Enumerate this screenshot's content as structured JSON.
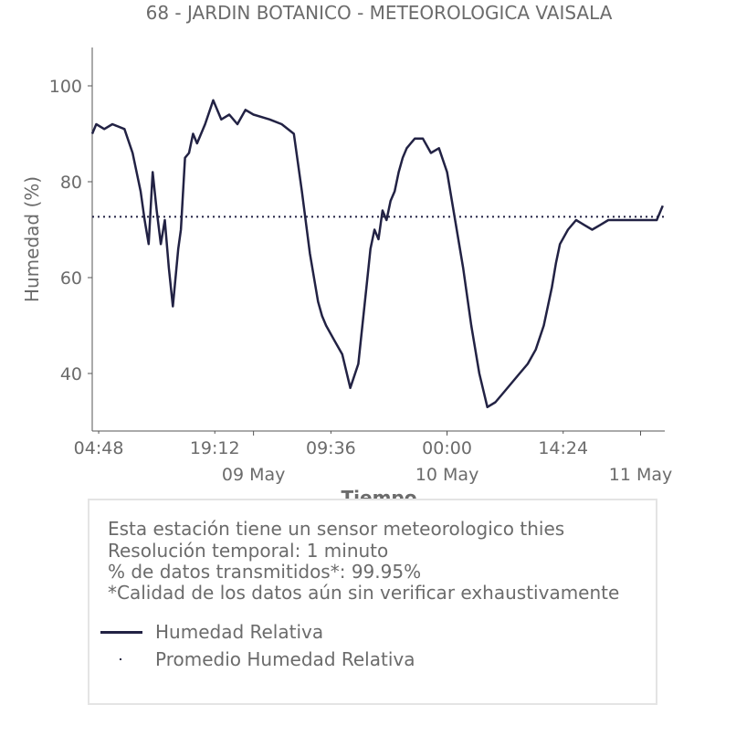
{
  "chart_data": {
    "type": "line",
    "title": "68 - JARDIN BOTANICO - METEOROLOGICA VAISALA",
    "xlabel": "Tiempo",
    "ylabel": "Humedad (%)",
    "ylim": [
      28,
      108
    ],
    "yticks": [
      40,
      60,
      80,
      100
    ],
    "xlim": [
      "2025-05-08 04:00",
      "2025-05-11 03:00"
    ],
    "xticks_minor": [
      {
        "x": "2025-05-08 04:48",
        "label": "04:48"
      },
      {
        "x": "2025-05-08 19:12",
        "label": "19:12"
      },
      {
        "x": "2025-05-09 09:36",
        "label": "09:36"
      },
      {
        "x": "2025-05-10 00:00",
        "label": "00:00"
      },
      {
        "x": "2025-05-10 14:24",
        "label": "14:24"
      }
    ],
    "xticks_major": [
      {
        "x": "2025-05-09 00:00",
        "label": "09 May"
      },
      {
        "x": "2025-05-10 00:00",
        "label": "10 May"
      },
      {
        "x": "2025-05-11 00:00",
        "label": "11 May"
      }
    ],
    "grid": false,
    "series": [
      {
        "name": "Humedad Relativa",
        "color": "#222244",
        "style": "solid",
        "x": [
          "2025-05-08 04:00",
          "2025-05-08 04:30",
          "2025-05-08 05:30",
          "2025-05-08 06:30",
          "2025-05-08 08:00",
          "2025-05-08 09:00",
          "2025-05-08 10:00",
          "2025-05-08 10:30",
          "2025-05-08 11:00",
          "2025-05-08 11:30",
          "2025-05-08 12:00",
          "2025-05-08 12:30",
          "2025-05-08 13:00",
          "2025-05-08 13:30",
          "2025-05-08 14:00",
          "2025-05-08 14:40",
          "2025-05-08 15:00",
          "2025-05-08 15:30",
          "2025-05-08 16:00",
          "2025-05-08 16:30",
          "2025-05-08 17:00",
          "2025-05-08 18:00",
          "2025-05-08 19:00",
          "2025-05-08 20:00",
          "2025-05-08 21:00",
          "2025-05-08 22:00",
          "2025-05-08 23:00",
          "2025-05-09 00:00",
          "2025-05-09 02:00",
          "2025-05-09 03:30",
          "2025-05-09 05:00",
          "2025-05-09 06:00",
          "2025-05-09 07:00",
          "2025-05-09 08:00",
          "2025-05-09 08:30",
          "2025-05-09 09:00",
          "2025-05-09 10:00",
          "2025-05-09 11:00",
          "2025-05-09 12:00",
          "2025-05-09 13:00",
          "2025-05-09 14:00",
          "2025-05-09 14:30",
          "2025-05-09 15:00",
          "2025-05-09 15:30",
          "2025-05-09 16:00",
          "2025-05-09 16:30",
          "2025-05-09 17:00",
          "2025-05-09 17:30",
          "2025-05-09 18:00",
          "2025-05-09 18:30",
          "2025-05-09 19:00",
          "2025-05-09 19:30",
          "2025-05-09 20:00",
          "2025-05-09 21:00",
          "2025-05-09 22:00",
          "2025-05-09 23:00",
          "2025-05-10 00:00",
          "2025-05-10 01:00",
          "2025-05-10 02:00",
          "2025-05-10 03:00",
          "2025-05-10 04:00",
          "2025-05-10 05:00",
          "2025-05-10 06:00",
          "2025-05-10 07:00",
          "2025-05-10 08:00",
          "2025-05-10 09:00",
          "2025-05-10 10:00",
          "2025-05-10 11:00",
          "2025-05-10 12:00",
          "2025-05-10 13:00",
          "2025-05-10 13:30",
          "2025-05-10 14:00",
          "2025-05-10 15:00",
          "2025-05-10 16:00",
          "2025-05-10 17:00",
          "2025-05-10 18:00",
          "2025-05-10 19:00",
          "2025-05-10 20:00",
          "2025-05-10 21:00",
          "2025-05-10 22:00",
          "2025-05-10 23:00",
          "2025-05-11 00:00",
          "2025-05-11 01:00",
          "2025-05-11 02:00",
          "2025-05-11 02:45"
        ],
        "y": [
          90,
          92,
          91,
          92,
          91,
          86,
          78,
          72,
          67,
          82,
          74,
          67,
          72,
          62,
          54,
          66,
          70,
          85,
          86,
          90,
          88,
          92,
          97,
          93,
          94,
          92,
          95,
          94,
          93,
          92,
          90,
          78,
          65,
          55,
          52,
          50,
          47,
          44,
          37,
          42,
          58,
          66,
          70,
          68,
          74,
          72,
          76,
          78,
          82,
          85,
          87,
          88,
          89,
          89,
          86,
          87,
          82,
          72,
          62,
          50,
          40,
          33,
          34,
          36,
          38,
          40,
          42,
          45,
          50,
          58,
          63,
          67,
          70,
          72,
          71,
          70,
          71,
          72,
          72,
          72,
          72,
          72,
          72,
          72,
          75
        ]
      },
      {
        "name": "Promedio Humedad Relativa",
        "color": "#222244",
        "style": "dotted",
        "constant": 72.7
      }
    ],
    "legend": "below"
  },
  "info": {
    "line1": "Esta estación tiene un sensor meteorologico thies",
    "line2": "Resolución temporal: 1 minuto",
    "line3": "% de datos transmitidos*: 99.95%",
    "line4": "*Calidad de los datos aún sin verificar exhaustivamente"
  },
  "legend": {
    "series1": "Humedad Relativa",
    "series2": "Promedio Humedad Relativa"
  }
}
